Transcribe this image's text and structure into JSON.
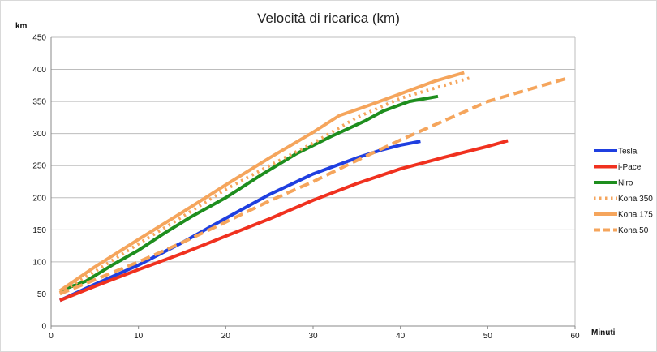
{
  "chart_data": {
    "type": "line",
    "title": "Velocità di ricarica (km)",
    "ylabel": "km",
    "xlabel": "Minuti",
    "xlim": [
      0,
      60
    ],
    "ylim": [
      0,
      450
    ],
    "xticks": [
      0,
      10,
      20,
      30,
      40,
      50,
      60
    ],
    "yticks": [
      0,
      50,
      100,
      150,
      200,
      250,
      300,
      350,
      400,
      450
    ],
    "grid": "horizontal",
    "legend_position": "right",
    "series": [
      {
        "name": "Tesla",
        "color": "#1f3fe0",
        "style": "solid",
        "x": [
          1,
          5,
          10,
          15,
          20,
          25,
          30,
          35,
          38,
          40,
          42.3
        ],
        "y": [
          40,
          65,
          95,
          130,
          168,
          205,
          237,
          262,
          275,
          282,
          288
        ]
      },
      {
        "name": "i-Pace",
        "color": "#f0311f",
        "style": "solid",
        "x": [
          1,
          5,
          10,
          15,
          20,
          25,
          30,
          35,
          40,
          45,
          50,
          52.3
        ],
        "y": [
          40,
          62,
          88,
          113,
          140,
          167,
          196,
          222,
          245,
          263,
          280,
          289
        ]
      },
      {
        "name": "Niro",
        "color": "#1e8e1e",
        "style": "solid",
        "x": [
          1,
          4,
          7,
          10,
          13,
          16,
          20,
          24,
          28,
          32,
          36,
          38,
          41,
          44.3
        ],
        "y": [
          55,
          70,
          95,
          118,
          145,
          170,
          200,
          235,
          268,
          295,
          320,
          335,
          350,
          358
        ]
      },
      {
        "name": "Kona 350",
        "color": "#f5a55c",
        "style": "dotted",
        "x": [
          1,
          5,
          10,
          15,
          20,
          25,
          30,
          35,
          40,
          45,
          48.3
        ],
        "y": [
          52,
          85,
          128,
          170,
          213,
          250,
          285,
          325,
          355,
          375,
          388
        ]
      },
      {
        "name": "Kona 175",
        "color": "#f5a55c",
        "style": "solid",
        "x": [
          1,
          5,
          10,
          15,
          20,
          25,
          30,
          33,
          36,
          40,
          44,
          47.3
        ],
        "y": [
          55,
          92,
          135,
          177,
          220,
          262,
          302,
          328,
          342,
          362,
          382,
          395
        ]
      },
      {
        "name": "Kona 50",
        "color": "#f5a55c",
        "style": "dashed",
        "x": [
          1,
          5,
          10,
          15,
          20,
          25,
          30,
          35,
          40,
          45,
          50,
          55,
          59.3
        ],
        "y": [
          50,
          72,
          100,
          130,
          162,
          195,
          225,
          258,
          290,
          320,
          350,
          370,
          387
        ]
      }
    ]
  }
}
